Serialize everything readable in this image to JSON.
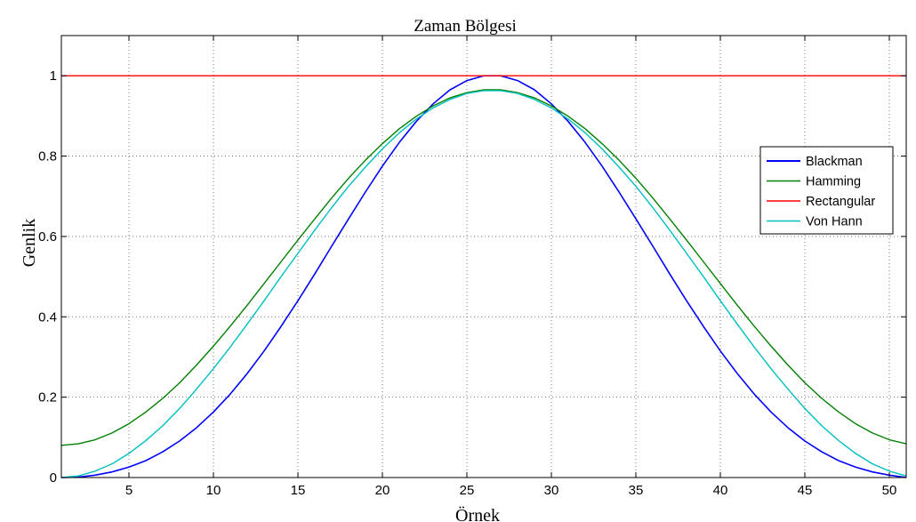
{
  "chart_data": {
    "type": "line",
    "title": "Zaman Bölgesi",
    "xlabel": "Örnek",
    "ylabel": "Genlik",
    "xlim": [
      1,
      51
    ],
    "ylim": [
      0,
      1.1
    ],
    "xticks": [
      5,
      10,
      15,
      20,
      25,
      30,
      35,
      40,
      45,
      50
    ],
    "yticks": [
      0,
      0.2,
      0.4,
      0.6,
      0.8,
      1
    ],
    "ytick_labels": [
      "0",
      "0.2",
      "0.4",
      "0.6",
      "0.8",
      "1"
    ],
    "grid": true,
    "legend_position": "right",
    "x": [
      1,
      2,
      3,
      4,
      5,
      6,
      7,
      8,
      9,
      10,
      11,
      12,
      13,
      14,
      15,
      16,
      17,
      18,
      19,
      20,
      21,
      22,
      23,
      24,
      25,
      26,
      27,
      28,
      29,
      30,
      31,
      32,
      33,
      34,
      35,
      36,
      37,
      38,
      39,
      40,
      41,
      42,
      43,
      44,
      45,
      46,
      47,
      48,
      49,
      50,
      51
    ],
    "series": [
      {
        "name": "Blackman",
        "color": "#0000ff",
        "values": [
          0.0,
          0.001,
          0.006,
          0.014,
          0.026,
          0.042,
          0.064,
          0.091,
          0.124,
          0.163,
          0.208,
          0.259,
          0.315,
          0.376,
          0.44,
          0.507,
          0.576,
          0.644,
          0.711,
          0.775,
          0.834,
          0.886,
          0.93,
          0.965,
          0.988,
          1.0,
          1.0,
          0.988,
          0.965,
          0.93,
          0.886,
          0.834,
          0.775,
          0.711,
          0.644,
          0.576,
          0.507,
          0.44,
          0.376,
          0.315,
          0.259,
          0.208,
          0.163,
          0.124,
          0.091,
          0.064,
          0.042,
          0.026,
          0.014,
          0.006,
          0.0
        ]
      },
      {
        "name": "Hamming",
        "color": "#008000",
        "values": [
          0.08,
          0.084,
          0.094,
          0.111,
          0.134,
          0.163,
          0.197,
          0.236,
          0.28,
          0.327,
          0.377,
          0.429,
          0.483,
          0.537,
          0.591,
          0.644,
          0.696,
          0.745,
          0.79,
          0.831,
          0.868,
          0.899,
          0.925,
          0.945,
          0.958,
          0.965,
          0.965,
          0.958,
          0.945,
          0.925,
          0.899,
          0.868,
          0.831,
          0.79,
          0.745,
          0.696,
          0.644,
          0.591,
          0.537,
          0.483,
          0.429,
          0.377,
          0.327,
          0.28,
          0.236,
          0.197,
          0.163,
          0.134,
          0.111,
          0.094,
          0.084
        ]
      },
      {
        "name": "Rectangular",
        "color": "#ff0000",
        "values": [
          1,
          1,
          1,
          1,
          1,
          1,
          1,
          1,
          1,
          1,
          1,
          1,
          1,
          1,
          1,
          1,
          1,
          1,
          1,
          1,
          1,
          1,
          1,
          1,
          1,
          1,
          1,
          1,
          1,
          1,
          1,
          1,
          1,
          1,
          1,
          1,
          1,
          1,
          1,
          1,
          1,
          1,
          1,
          1,
          1,
          1,
          1,
          1,
          1,
          1,
          1
        ]
      },
      {
        "name": "Von Hann",
        "color": "#00bfbf",
        "values": [
          0.0,
          0.004,
          0.016,
          0.034,
          0.06,
          0.092,
          0.129,
          0.172,
          0.22,
          0.271,
          0.325,
          0.382,
          0.44,
          0.5,
          0.558,
          0.616,
          0.672,
          0.725,
          0.773,
          0.818,
          0.858,
          0.892,
          0.92,
          0.941,
          0.956,
          0.963,
          0.963,
          0.956,
          0.941,
          0.92,
          0.892,
          0.858,
          0.818,
          0.773,
          0.725,
          0.672,
          0.616,
          0.558,
          0.5,
          0.44,
          0.382,
          0.325,
          0.271,
          0.22,
          0.172,
          0.129,
          0.092,
          0.06,
          0.034,
          0.016,
          0.004
        ]
      }
    ]
  }
}
